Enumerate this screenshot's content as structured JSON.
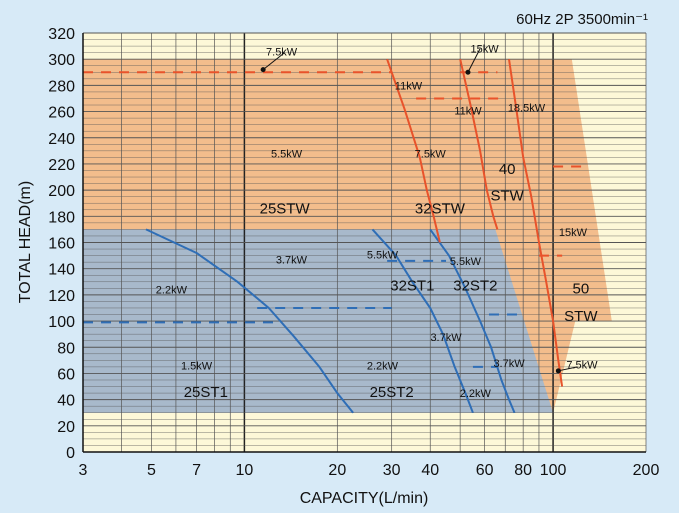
{
  "chart_data": {
    "type": "area",
    "title": "60Hz 2P 3500min⁻¹",
    "xlabel": "CAPACITY(L/min)",
    "ylabel": "TOTAL HEAD(m)",
    "x_scale": "log",
    "xlim": [
      3,
      200
    ],
    "ylim": [
      0,
      320
    ],
    "x_ticks": [
      3,
      5,
      7,
      10,
      20,
      30,
      40,
      60,
      80,
      100,
      200
    ],
    "x_tick_labels": [
      "3",
      "5",
      "7",
      "10",
      "20",
      "30",
      "40",
      "60",
      "80",
      "100",
      "200"
    ],
    "y_ticks": [
      0,
      20,
      40,
      60,
      80,
      100,
      120,
      140,
      160,
      180,
      200,
      220,
      240,
      260,
      280,
      300,
      320
    ],
    "y_tick_labels": [
      "0",
      "20",
      "40",
      "60",
      "80",
      "100",
      "120",
      "140",
      "160",
      "180",
      "200",
      "220",
      "240",
      "260",
      "280",
      "300",
      "320"
    ],
    "grid": true,
    "colors": {
      "background": "#d7eaf7",
      "plot_bg": "#fdf8d8",
      "stw_region": "#f3bd8c",
      "st_region": "#a8b9cb",
      "stw_line": "#e8532b",
      "st_line": "#2f6eb6",
      "axis": "#111111",
      "grid": "#555555"
    },
    "regions": [
      {
        "series": "STW",
        "color": "#f3bd8c",
        "points": [
          [
            3,
            30
          ],
          [
            3,
            300
          ],
          [
            115,
            300
          ],
          [
            155,
            100
          ],
          [
            118,
            100
          ],
          [
            100,
            30
          ]
        ]
      },
      {
        "series": "ST",
        "color": "#a8b9cb",
        "points": [
          [
            3,
            30
          ],
          [
            3,
            170
          ],
          [
            65,
            170
          ],
          [
            100,
            30
          ]
        ]
      }
    ],
    "curves": [
      {
        "series": "ST",
        "points": [
          [
            4.8,
            170
          ],
          [
            7,
            152
          ],
          [
            9.5,
            130
          ],
          [
            12,
            110
          ],
          [
            14.5,
            88
          ],
          [
            17.5,
            65
          ],
          [
            20,
            45
          ],
          [
            22.5,
            30
          ]
        ]
      },
      {
        "series": "ST",
        "points": [
          [
            26,
            170
          ],
          [
            31,
            150
          ],
          [
            35,
            130
          ],
          [
            40,
            110
          ],
          [
            44,
            90
          ],
          [
            48,
            65
          ],
          [
            52,
            45
          ],
          [
            55,
            30
          ]
        ]
      },
      {
        "series": "ST",
        "points": [
          [
            40,
            170
          ],
          [
            46,
            150
          ],
          [
            52,
            125
          ],
          [
            58,
            100
          ],
          [
            63,
            80
          ],
          [
            68,
            55
          ],
          [
            72,
            40
          ],
          [
            75,
            30
          ]
        ]
      },
      {
        "series": "STW",
        "points": [
          [
            29,
            300
          ],
          [
            33,
            262
          ],
          [
            37,
            225
          ],
          [
            39,
            200
          ],
          [
            41,
            180
          ],
          [
            43,
            160
          ]
        ]
      },
      {
        "series": "STW",
        "points": [
          [
            50,
            300
          ],
          [
            54,
            265
          ],
          [
            58,
            230
          ],
          [
            61,
            200
          ],
          [
            64,
            180
          ],
          [
            66,
            170
          ]
        ]
      },
      {
        "series": "STW",
        "points": [
          [
            72,
            300
          ],
          [
            76,
            262
          ],
          [
            80,
            225
          ],
          [
            85,
            195
          ],
          [
            90,
            160
          ],
          [
            95,
            130
          ],
          [
            100,
            100
          ],
          [
            104,
            70
          ],
          [
            107,
            50
          ]
        ]
      }
    ],
    "dashed_lines": [
      {
        "series": "STW",
        "x": [
          3,
          30
        ],
        "y": 290
      },
      {
        "series": "STW",
        "x": [
          36,
          68
        ],
        "y": 270
      },
      {
        "series": "STW",
        "x": [
          50,
          66
        ],
        "y": 290
      },
      {
        "series": "STW",
        "x": [
          100,
          125
        ],
        "y": 218
      },
      {
        "series": "STW",
        "x": [
          90,
          107
        ],
        "y": 150
      },
      {
        "series": "ST",
        "x": [
          3,
          12.5
        ],
        "y": 99
      },
      {
        "series": "ST",
        "x": [
          11,
          30
        ],
        "y": 110
      },
      {
        "series": "ST",
        "x": [
          29,
          45
        ],
        "y": 146
      },
      {
        "series": "ST",
        "x": [
          62,
          79
        ],
        "y": 105
      },
      {
        "series": "ST",
        "x": [
          55,
          66
        ],
        "y": 65
      }
    ],
    "power_labels": [
      {
        "text": "7.5kW",
        "x": 13.2,
        "y": 306,
        "color": "#111111",
        "size": 11
      },
      {
        "text": "15kW",
        "x": 60,
        "y": 308,
        "color": "#111111",
        "size": 11
      },
      {
        "text": "11kW",
        "x": 34,
        "y": 280,
        "color": "#111111",
        "size": 11
      },
      {
        "text": "11kW",
        "x": 53,
        "y": 261,
        "color": "#111111",
        "size": 11
      },
      {
        "text": "18.5kW",
        "x": 82,
        "y": 263,
        "color": "#111111",
        "size": 11
      },
      {
        "text": "5.5kW",
        "x": 13.7,
        "y": 228,
        "color": "#111111",
        "size": 11
      },
      {
        "text": "7.5kW",
        "x": 40,
        "y": 228,
        "color": "#111111",
        "size": 11
      },
      {
        "text": "15kW",
        "x": 116,
        "y": 168,
        "color": "#111111",
        "size": 11
      },
      {
        "text": "3.7kW",
        "x": 14.2,
        "y": 147,
        "color": "#111111",
        "size": 11
      },
      {
        "text": "5.5kW",
        "x": 28,
        "y": 151,
        "color": "#111111",
        "size": 11
      },
      {
        "text": "5.5kW",
        "x": 52,
        "y": 146,
        "color": "#111111",
        "size": 11
      },
      {
        "text": "2.2kW",
        "x": 5.8,
        "y": 124,
        "color": "#111111",
        "size": 11
      },
      {
        "text": "3.7kW",
        "x": 45,
        "y": 88,
        "color": "#111111",
        "size": 11
      },
      {
        "text": "3.7kW",
        "x": 72,
        "y": 68,
        "color": "#111111",
        "size": 11
      },
      {
        "text": "7.5kW",
        "x": 124,
        "y": 67,
        "color": "#111111",
        "size": 11
      },
      {
        "text": "1.5kW",
        "x": 7,
        "y": 66,
        "color": "#111111",
        "size": 11
      },
      {
        "text": "2.2kW",
        "x": 28,
        "y": 66,
        "color": "#111111",
        "size": 11
      },
      {
        "text": "2.2kW",
        "x": 56,
        "y": 45,
        "color": "#111111",
        "size": 11
      }
    ],
    "model_labels": [
      {
        "text": "25STW",
        "x": 13.5,
        "y": 186,
        "color": "#111111",
        "size": 15
      },
      {
        "text": "32STW",
        "x": 43,
        "y": 186,
        "color": "#111111",
        "size": 15
      },
      {
        "text": "40",
        "x": 71,
        "y": 216,
        "color": "#111111",
        "size": 15
      },
      {
        "text": "STW",
        "x": 71,
        "y": 196,
        "color": "#111111",
        "size": 15
      },
      {
        "text": "32ST1",
        "x": 35,
        "y": 127,
        "color": "#111111",
        "size": 15
      },
      {
        "text": "32ST2",
        "x": 56,
        "y": 127,
        "color": "#111111",
        "size": 15
      },
      {
        "text": "50",
        "x": 123,
        "y": 125,
        "color": "#111111",
        "size": 15
      },
      {
        "text": "STW",
        "x": 123,
        "y": 104,
        "color": "#111111",
        "size": 15
      },
      {
        "text": "25ST1",
        "x": 7.5,
        "y": 46,
        "color": "#111111",
        "size": 15
      },
      {
        "text": "25ST2",
        "x": 30,
        "y": 46,
        "color": "#111111",
        "size": 15
      }
    ],
    "pointers": [
      {
        "from": [
          11.5,
          292
        ],
        "to": [
          13.5,
          305
        ]
      },
      {
        "from": [
          53,
          290
        ],
        "to": [
          58,
          308
        ]
      },
      {
        "from": [
          104,
          62
        ],
        "to": [
          120,
          65
        ]
      }
    ]
  }
}
